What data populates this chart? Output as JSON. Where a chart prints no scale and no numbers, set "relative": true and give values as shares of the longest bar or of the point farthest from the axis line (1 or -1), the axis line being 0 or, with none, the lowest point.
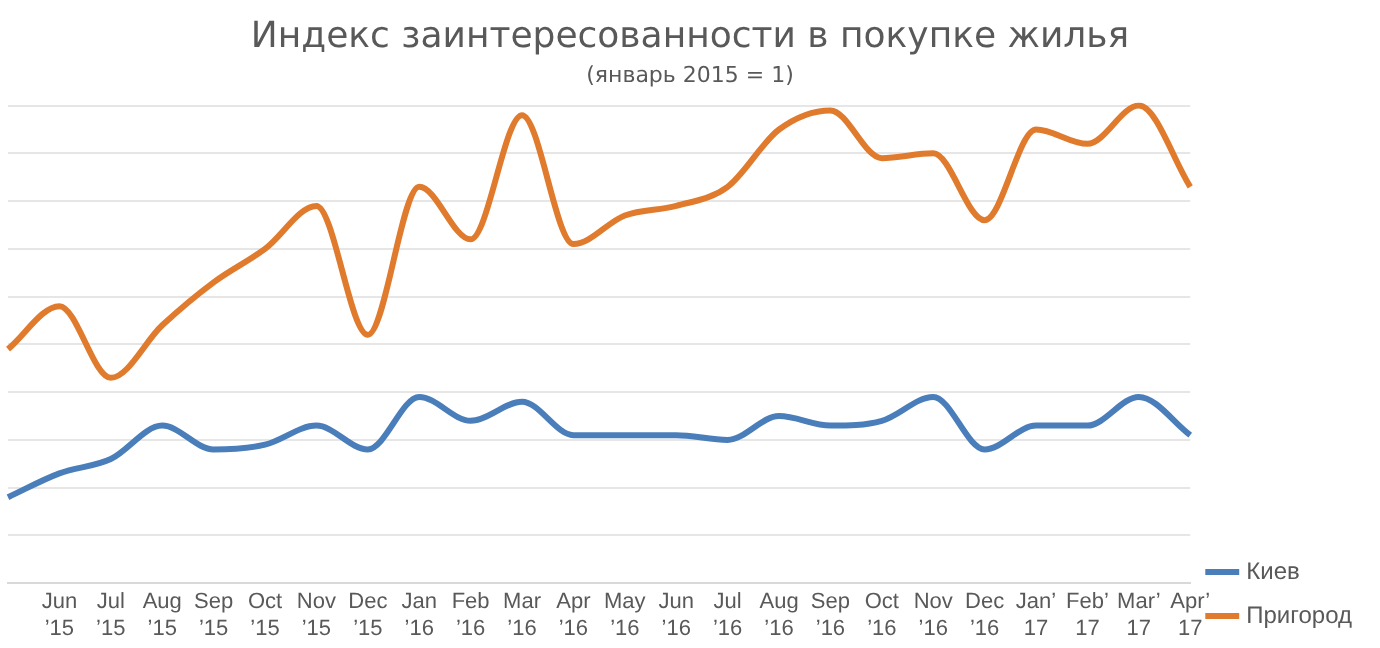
{
  "chart_data": {
    "type": "line",
    "title": "Индекс заинтересованности в покупке жилья",
    "subtitle": "(январь 2015 = 1)",
    "categories": [
      null,
      "Jun ’15",
      "Jul ’15",
      "Aug ’15",
      "Sep ’15",
      "Oct ’15",
      "Nov ’15",
      "Dec ’15",
      "Jan ’16",
      "Feb ’16",
      "Mar ’16",
      "Apr ’16",
      "May ’16",
      "Jun ’16",
      "Jul ’16",
      "Aug ’16",
      "Sep ’16",
      "Oct ’16",
      "Nov ’16",
      "Dec ’16",
      "Jan’ 17",
      "Feb’ 17",
      "Mar’ 17",
      "Apr’ 17"
    ],
    "relative": true,
    "grid": "y",
    "legend": "right",
    "marker": "none",
    "line_style": "solid",
    "series": [
      {
        "name": "Киев",
        "color": "#4a7ebb",
        "values": [
          0.18,
          0.23,
          0.26,
          0.33,
          0.28,
          0.29,
          0.33,
          0.28,
          0.39,
          0.34,
          0.38,
          0.31,
          0.31,
          0.31,
          0.3,
          0.35,
          0.33,
          0.34,
          0.39,
          0.28,
          0.33,
          0.33,
          0.39,
          0.31
        ]
      },
      {
        "name": "Пригород",
        "color": "#e07b2e",
        "values": [
          0.49,
          0.58,
          0.43,
          0.54,
          0.63,
          0.7,
          0.79,
          0.52,
          0.83,
          0.72,
          0.98,
          0.71,
          0.77,
          0.79,
          0.83,
          0.95,
          0.99,
          0.89,
          0.9,
          0.76,
          0.95,
          0.92,
          1,
          0.83
        ]
      }
    ]
  }
}
